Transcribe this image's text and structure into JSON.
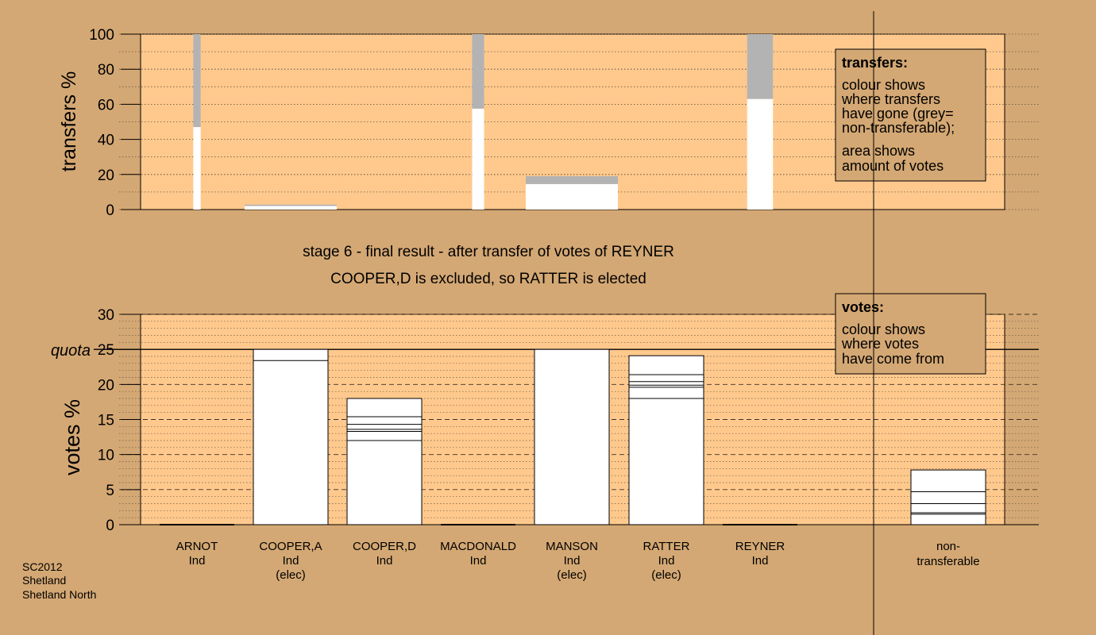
{
  "colors": {
    "background": "#d4a874",
    "plot_area": "#ffc98d",
    "bar": "#ffffff",
    "non_transferable": "#b3b3b3",
    "info_box": "#d4a874"
  },
  "chart_data": [
    {
      "type": "bar",
      "id": "transfers",
      "ylabel": "transfers %",
      "ylim": [
        0,
        100
      ],
      "yticks": [
        "0",
        "20",
        "40",
        "60",
        "80",
        "100"
      ],
      "grid": true,
      "bars": [
        {
          "category": "ARNOT",
          "transferred": 47,
          "non_transferable": 53,
          "width_share": 0.08
        },
        {
          "category": "COOPER,A",
          "transferred": 2.0,
          "non_transferable": 0.8,
          "width_share": 1.0
        },
        {
          "category": "COOPER,D",
          "transferred": 0,
          "non_transferable": 0,
          "width_share": 0
        },
        {
          "category": "MACDONALD",
          "transferred": 57.5,
          "non_transferable": 42.5,
          "width_share": 0.13
        },
        {
          "category": "MANSON",
          "transferred": 14.5,
          "non_transferable": 4.5,
          "width_share": 1.0
        },
        {
          "category": "RATTER",
          "transferred": 0,
          "non_transferable": 0,
          "width_share": 0
        },
        {
          "category": "REYNER",
          "transferred": 63,
          "non_transferable": 37,
          "width_share": 0.28
        }
      ],
      "legend": {
        "title": "transfers:",
        "lines": [
          "colour shows",
          "where transfers",
          "have gone (grey=",
          "non-transferable);"
        ],
        "lines2": [
          "area shows",
          "amount of votes"
        ]
      }
    },
    {
      "type": "bar",
      "id": "votes",
      "ylabel": "votes %",
      "ylim": [
        0,
        30
      ],
      "yticks": [
        "0",
        "5",
        "10",
        "15",
        "20",
        "25",
        "30"
      ],
      "quota_label": "quota",
      "quota": 25,
      "grid": true,
      "categories": [
        "ARNOT",
        "COOPER,A",
        "COOPER,D",
        "MACDONALD",
        "MANSON",
        "RATTER",
        "REYNER",
        "non-transferable"
      ],
      "bars": [
        {
          "category": "ARNOT",
          "total": 0,
          "segments": []
        },
        {
          "category": "COOPER,A",
          "total": 25,
          "segments": [
            23.4
          ]
        },
        {
          "category": "COOPER,D",
          "total": 18,
          "segments": [
            12.0,
            13.3,
            13.6,
            14.3,
            15.4
          ]
        },
        {
          "category": "MACDONALD",
          "total": 0,
          "segments": []
        },
        {
          "category": "MANSON",
          "total": 25,
          "segments": []
        },
        {
          "category": "RATTER",
          "total": 24.1,
          "segments": [
            18.0,
            19.6,
            19.9,
            20.4,
            21.4
          ]
        },
        {
          "category": "REYNER",
          "total": 0,
          "segments": []
        },
        {
          "category": "non-transferable",
          "total": 7.8,
          "segments": [
            1.5,
            1.7,
            3.0,
            4.7
          ]
        }
      ],
      "legend": {
        "title": "votes:",
        "lines": [
          "colour shows",
          "where votes",
          "have come from"
        ]
      }
    }
  ],
  "stage_title": "stage 6 - final result - after transfer of votes of REYNER",
  "stage_subtitle": "COOPER,D is excluded, so RATTER is elected",
  "candidates": [
    {
      "name": "ARNOT",
      "party": "Ind",
      "status": ""
    },
    {
      "name": "COOPER,A",
      "party": "Ind",
      "status": "(elec)"
    },
    {
      "name": "COOPER,D",
      "party": "Ind",
      "status": ""
    },
    {
      "name": "MACDONALD",
      "party": "Ind",
      "status": ""
    },
    {
      "name": "MANSON",
      "party": "Ind",
      "status": "(elec)"
    },
    {
      "name": "RATTER",
      "party": "Ind",
      "status": "(elec)"
    },
    {
      "name": "REYNER",
      "party": "Ind",
      "status": ""
    }
  ],
  "nontransferable_label": [
    "non-",
    "transferable"
  ],
  "footer": [
    "SC2012",
    "Shetland",
    "Shetland North"
  ]
}
